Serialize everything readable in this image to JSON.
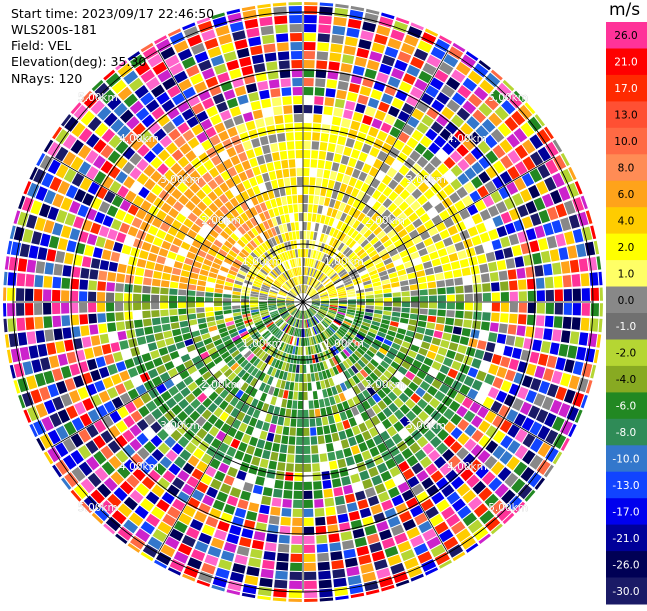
{
  "info": {
    "start_time": "Start time: 2023/09/17 22:46:50",
    "instrument": "WLS200s-181",
    "field": "Field: VEL",
    "elevation": "Elevation(deg): 35.30",
    "nrays": "NRays: 120"
  },
  "colorbar": {
    "unit": "m/s",
    "levels": [
      {
        "label": "26.0",
        "color": "#ff3399"
      },
      {
        "label": "21.0",
        "color": "#ff0000"
      },
      {
        "label": "17.0",
        "color": "#ff2a00"
      },
      {
        "label": "13.0",
        "color": "#ff5033"
      },
      {
        "label": "10.0",
        "color": "#ff6a44"
      },
      {
        "label": "8.0",
        "color": "#ff8c55"
      },
      {
        "label": "6.0",
        "color": "#ffa31a"
      },
      {
        "label": "4.0",
        "color": "#ffcc00"
      },
      {
        "label": "2.0",
        "color": "#ffff00"
      },
      {
        "label": "1.0",
        "color": "#ffff66"
      },
      {
        "label": "0.0",
        "color": "#888888"
      },
      {
        "label": "-1.0",
        "color": "#707070"
      },
      {
        "label": "-2.0",
        "color": "#b5d633"
      },
      {
        "label": "-4.0",
        "color": "#88aa22"
      },
      {
        "label": "-6.0",
        "color": "#228822"
      },
      {
        "label": "-8.0",
        "color": "#2f8b57"
      },
      {
        "label": "-10.0",
        "color": "#3377cc"
      },
      {
        "label": "-13.0",
        "color": "#1144ff"
      },
      {
        "label": "-17.0",
        "color": "#0000ee"
      },
      {
        "label": "-21.0",
        "color": "#000099"
      },
      {
        "label": "-26.0",
        "color": "#000055"
      },
      {
        "label": "-30.0",
        "color": "#1a1a66"
      }
    ]
  },
  "rings": [
    {
      "label": "1.00km"
    },
    {
      "label": "2.00km"
    },
    {
      "label": "3.00km"
    },
    {
      "label": "4.00km"
    },
    {
      "label": "5.00km"
    }
  ],
  "palettes": {
    "noise": [
      "#ff3399",
      "#ff0000",
      "#ff2a00",
      "#ff6a44",
      "#ffa31a",
      "#ffcc00",
      "#ffff00",
      "#888888",
      "#b5d633",
      "#228822",
      "#3377cc",
      "#1144ff",
      "#0000ee",
      "#000099",
      "#000055",
      "#1a1a66",
      "#cc22cc",
      "#ff66cc"
    ],
    "yellow": [
      "#ffff00",
      "#ffff00",
      "#ffee00",
      "#ffcc00",
      "#ffff66",
      "#888888"
    ],
    "orange": [
      "#ffa31a",
      "#ffcc00",
      "#ffa31a",
      "#ffff00",
      "#ff8c55"
    ],
    "green": [
      "#228822",
      "#2f8b57",
      "#88aa22",
      "#228822",
      "#3a9a55",
      "#b5d633"
    ],
    "grey": [
      "#888888",
      "#707070",
      "#b5d633",
      "#ffff00",
      "#88aa22"
    ]
  }
}
